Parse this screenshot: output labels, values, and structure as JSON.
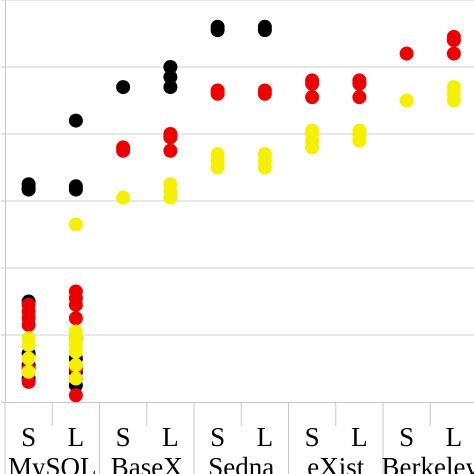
{
  "chart_data": {
    "type": "scatter",
    "title": "",
    "xlabel": "",
    "ylabel": "",
    "grid": true,
    "categories": [
      "S",
      "L",
      "S",
      "L",
      "S",
      "L",
      "S",
      "L",
      "S",
      "L"
    ],
    "groups": [
      "MySQL",
      "BaseX",
      "Sedna",
      "eXist",
      "Berkeley"
    ],
    "ylim": [
      0,
      6
    ],
    "series": [
      {
        "color": "#000000",
        "points": [
          {
            "x": 0,
            "y": [
              0.35,
              0.55,
              0.72,
              1.5,
              3.17,
              3.2,
              3.25
            ]
          },
          {
            "x": 1,
            "y": [
              0.25,
              0.35,
              0.45,
              0.65,
              3.17,
              3.22,
              4.2
            ]
          },
          {
            "x": 2,
            "y": [
              4.7
            ]
          },
          {
            "x": 3,
            "y": [
              4.7,
              4.85,
              5.0
            ]
          },
          {
            "x": 4,
            "y": [
              5.55,
              5.6
            ]
          },
          {
            "x": 5,
            "y": [
              5.55,
              5.6
            ]
          }
        ]
      },
      {
        "color": "#ee0000",
        "points": [
          {
            "x": 0,
            "y": [
              0.3,
              0.5,
              1.15,
              1.25,
              1.35,
              1.45
            ]
          },
          {
            "x": 1,
            "y": [
              0.1,
              0.5,
              0.95,
              1.25,
              1.45,
              1.55,
              1.65
            ]
          },
          {
            "x": 2,
            "y": [
              3.75,
              3.8
            ]
          },
          {
            "x": 3,
            "y": [
              3.75,
              3.95,
              4.0
            ]
          },
          {
            "x": 4,
            "y": [
              4.6,
              4.65
            ]
          },
          {
            "x": 5,
            "y": [
              4.6,
              4.65
            ]
          },
          {
            "x": 6,
            "y": [
              4.55,
              4.75,
              4.8
            ]
          },
          {
            "x": 7,
            "y": [
              4.55,
              4.75,
              4.8
            ]
          },
          {
            "x": 8,
            "y": [
              5.2
            ]
          },
          {
            "x": 9,
            "y": [
              5.2,
              5.4,
              5.45
            ]
          }
        ]
      },
      {
        "color": "#f5f000",
        "points": [
          {
            "x": 0,
            "y": [
              0.45,
              0.65,
              0.85,
              0.95
            ]
          },
          {
            "x": 1,
            "y": [
              0.35,
              0.55,
              0.75,
              0.85,
              0.95,
              1.05,
              2.65
            ]
          },
          {
            "x": 2,
            "y": [
              3.05
            ]
          },
          {
            "x": 3,
            "y": [
              3.05,
              3.15,
              3.25
            ]
          },
          {
            "x": 4,
            "y": [
              3.5,
              3.6,
              3.7
            ]
          },
          {
            "x": 5,
            "y": [
              3.5,
              3.6,
              3.7
            ]
          },
          {
            "x": 6,
            "y": [
              3.8,
              3.9,
              4.0,
              4.05
            ]
          },
          {
            "x": 7,
            "y": [
              3.9,
              4.0,
              4.05
            ]
          },
          {
            "x": 8,
            "y": [
              4.5
            ]
          },
          {
            "x": 9,
            "y": [
              4.5,
              4.6,
              4.7
            ]
          }
        ]
      }
    ]
  }
}
